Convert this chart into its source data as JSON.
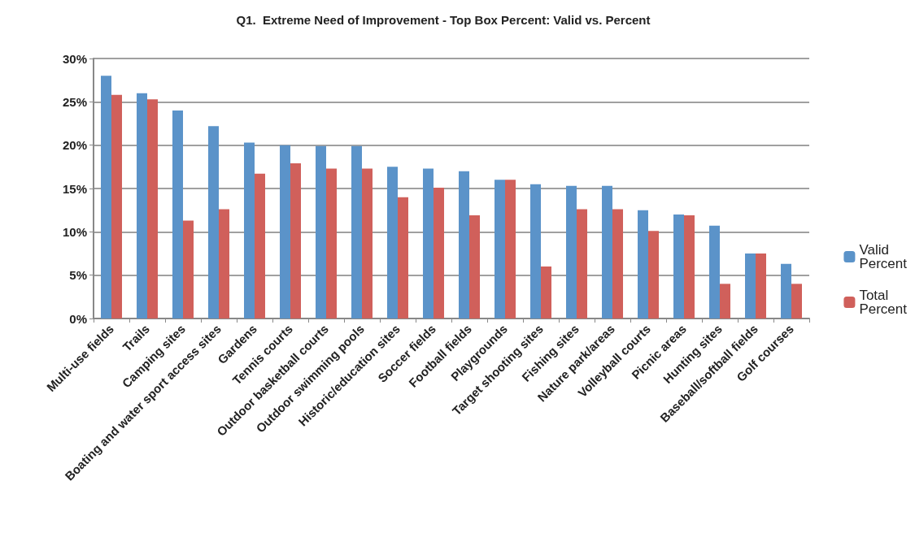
{
  "chart_data": {
    "type": "bar",
    "title": "Q1.  Extreme Need of Improvement - Top Box Percent: Valid vs. Percent",
    "categories": [
      "Multi-use fields",
      "Trails",
      "Camping sites",
      "Boating and water sport access sites",
      "Gardens",
      "Tennis courts",
      "Outdoor basketball courts",
      "Outdoor swimming pools",
      "Historic/education sites",
      "Soccer fields",
      "Football fields",
      "Playgrounds",
      "Target shooting sites",
      "Fishing sites",
      "Nature park/areas",
      "Volleyball courts",
      "Picnic areas",
      "Hunting sites",
      "Baseball/softball fields",
      "Golf courses"
    ],
    "series": [
      {
        "name": "Valid Percent",
        "color": "#5b93c9",
        "values": [
          28,
          26,
          24,
          22.2,
          20.3,
          20,
          19.9,
          19.9,
          17.5,
          17.3,
          17,
          16,
          15.5,
          15.3,
          15.3,
          12.5,
          12,
          10.7,
          7.5,
          6.3
        ]
      },
      {
        "name": "Total Percent",
        "color": "#d0605b",
        "values": [
          25.8,
          25.3,
          11.3,
          12.6,
          16.7,
          17.9,
          17.3,
          17.3,
          14,
          15.1,
          11.9,
          16,
          6,
          12.6,
          12.6,
          10.1,
          11.9,
          4,
          7.5,
          4
        ]
      }
    ],
    "ylim": [
      0,
      30
    ],
    "yticks": [
      {
        "value": 0,
        "label": "0%"
      },
      {
        "value": 5,
        "label": "5%"
      },
      {
        "value": 10,
        "label": "10%"
      },
      {
        "value": 15,
        "label": "15%"
      },
      {
        "value": 20,
        "label": "20%"
      },
      {
        "value": 25,
        "label": "25%"
      },
      {
        "value": 30,
        "label": "30%"
      }
    ],
    "grid": "y",
    "legend": "right"
  }
}
